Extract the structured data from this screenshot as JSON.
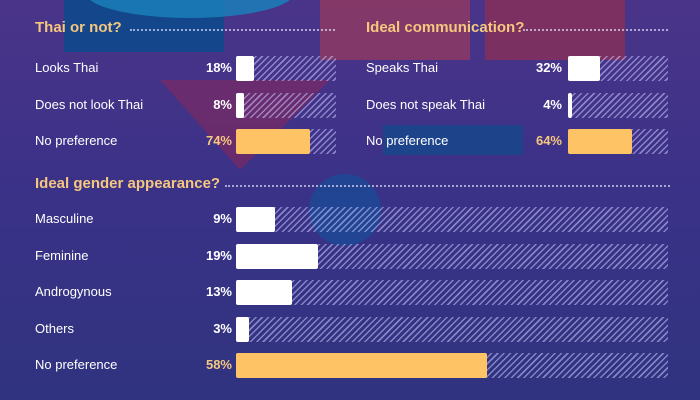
{
  "colors": {
    "accent": "#fdc364",
    "title": "#f6c77e",
    "bar": "#ffffff",
    "background": "#3b3288"
  },
  "chart_data": [
    {
      "type": "bar",
      "orientation": "horizontal",
      "title": "Thai or not?",
      "categories": [
        "Looks Thai",
        "Does not look Thai",
        "No preference"
      ],
      "values": [
        18,
        8,
        74
      ],
      "value_labels": [
        "18%",
        "8%",
        "74%"
      ],
      "highlight": [
        false,
        false,
        true
      ],
      "xlim": [
        0,
        100
      ],
      "unit": "%"
    },
    {
      "type": "bar",
      "orientation": "horizontal",
      "title": "Ideal communication?",
      "categories": [
        "Speaks Thai",
        "Does not speak Thai",
        "No preference"
      ],
      "values": [
        32,
        4,
        64
      ],
      "value_labels": [
        "32%",
        "4%",
        "64%"
      ],
      "highlight": [
        false,
        false,
        true
      ],
      "xlim": [
        0,
        100
      ],
      "unit": "%"
    },
    {
      "type": "bar",
      "orientation": "horizontal",
      "title": "Ideal gender appearance?",
      "categories": [
        "Masculine",
        "Feminine",
        "Androgynous",
        "Others",
        "No preference"
      ],
      "values": [
        9,
        19,
        13,
        3,
        58
      ],
      "value_labels": [
        "9%",
        "19%",
        "13%",
        "3%",
        "58%"
      ],
      "highlight": [
        false,
        false,
        false,
        false,
        true
      ],
      "xlim": [
        0,
        100
      ],
      "unit": "%"
    }
  ]
}
